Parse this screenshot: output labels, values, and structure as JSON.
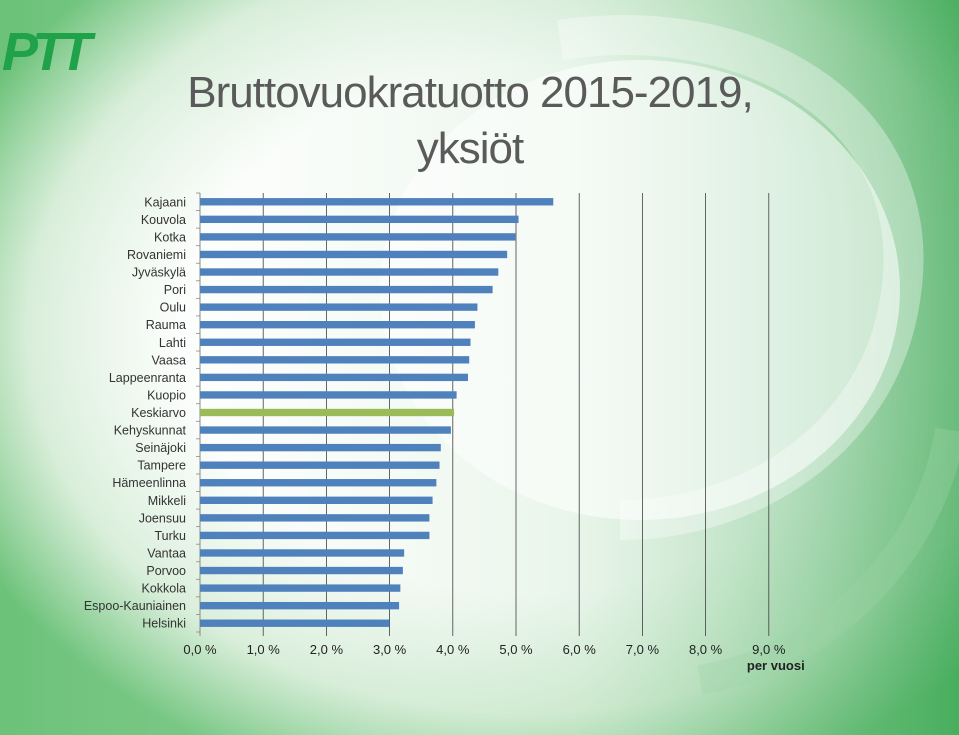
{
  "title": {
    "line1": "Bruttovuokratuotto 2015-2019,",
    "line2": "yksiöt"
  },
  "logo": {
    "text": "PTT",
    "color": "#1fa24a"
  },
  "colors": {
    "bar": "#4f81bd",
    "highlight": "#9bbb59",
    "grid": "#404040"
  },
  "chart_data": {
    "type": "bar",
    "orientation": "horizontal",
    "categories": [
      "Kajaani",
      "Kouvola",
      "Kotka",
      "Rovaniemi",
      "Jyväskylä",
      "Pori",
      "Oulu",
      "Rauma",
      "Lahti",
      "Vaasa",
      "Lappeenranta",
      "Kuopio",
      "Keskiarvo",
      "Kehyskunnat",
      "Seinäjoki",
      "Tampere",
      "Hämeenlinna",
      "Mikkeli",
      "Joensuu",
      "Turku",
      "Vantaa",
      "Porvoo",
      "Kokkola",
      "Espoo-Kauniainen",
      "Helsinki"
    ],
    "values": [
      5.59,
      5.04,
      4.99,
      4.86,
      4.72,
      4.63,
      4.39,
      4.35,
      4.28,
      4.26,
      4.24,
      4.06,
      4.02,
      3.97,
      3.81,
      3.79,
      3.74,
      3.68,
      3.63,
      3.63,
      3.23,
      3.21,
      3.17,
      3.15,
      3.0
    ],
    "highlight": "Keskiarvo",
    "xlim": [
      0,
      9
    ],
    "xticks": [
      "0,0 %",
      "1,0 %",
      "2,0 %",
      "3,0 %",
      "4,0 %",
      "5,0 %",
      "6,0 %",
      "7,0 %",
      "8,0 %",
      "9,0 %"
    ],
    "xlabel": "per vuosi",
    "grid": true
  }
}
